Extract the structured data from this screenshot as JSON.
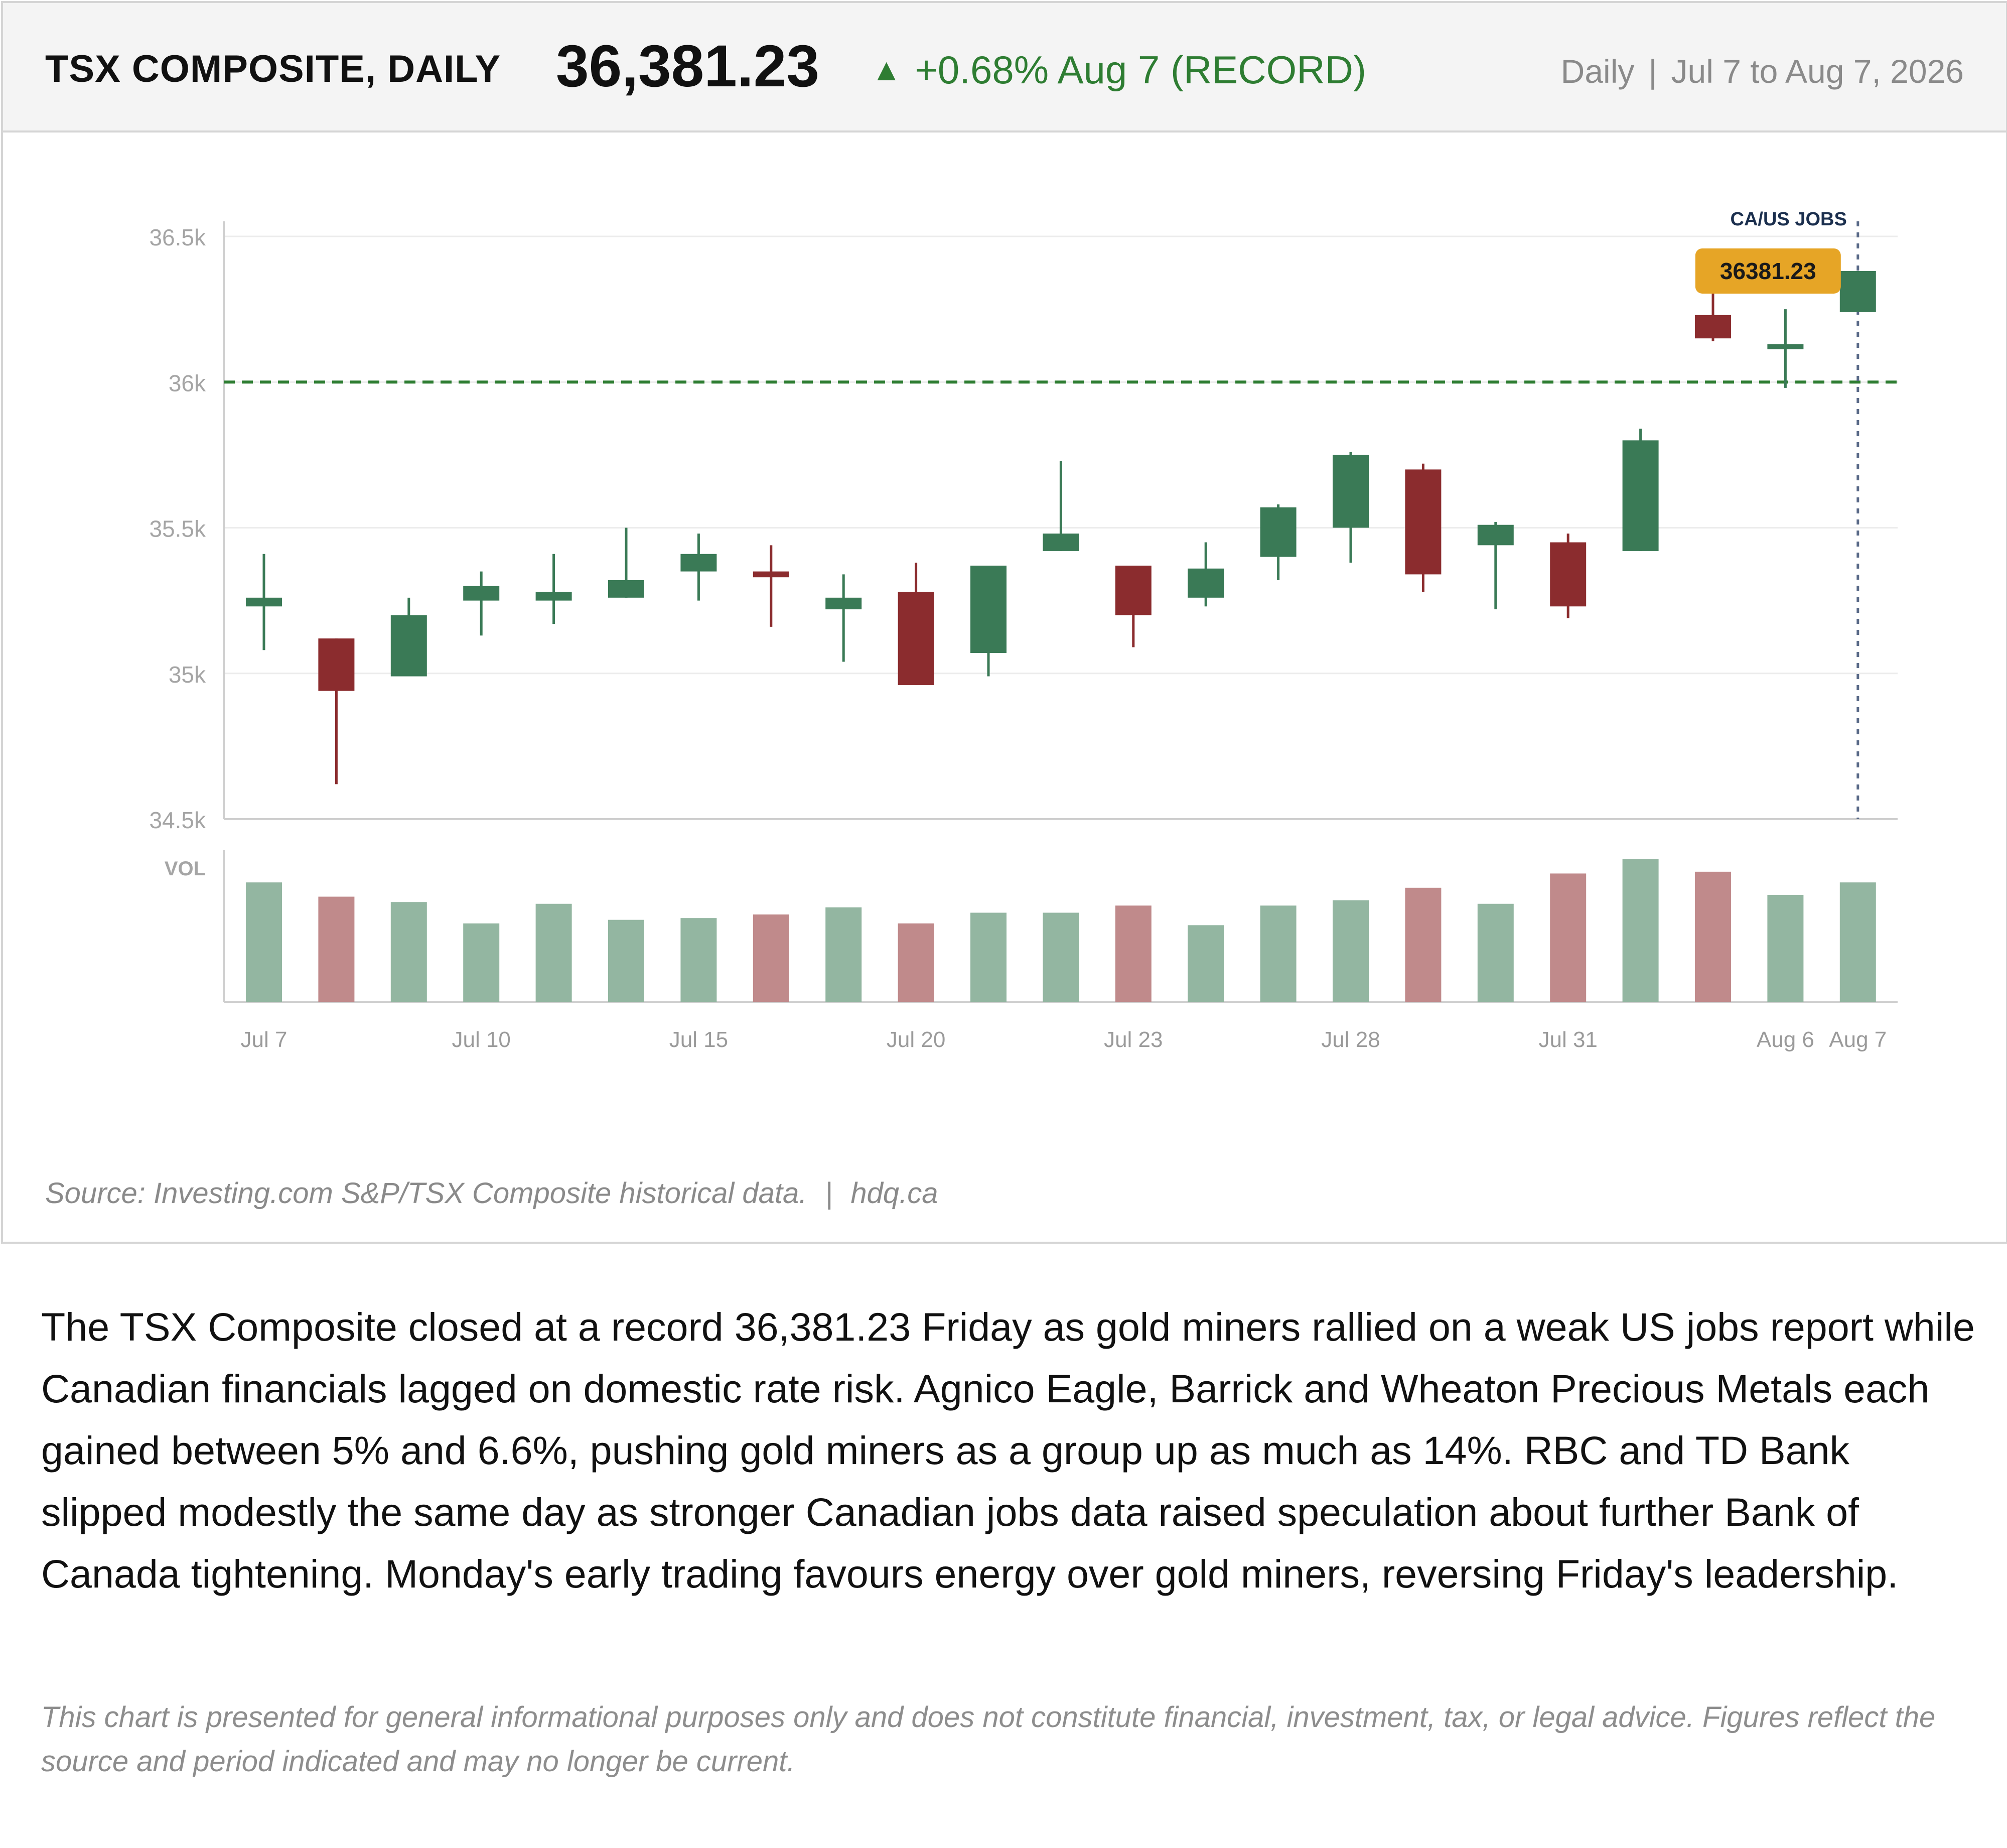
{
  "header": {
    "title": "TSX COMPOSITE, DAILY",
    "price": "36,381.23",
    "change_arrow": "▲",
    "change_text": "+0.68% Aug 7 (RECORD)",
    "interval": "Daily",
    "separator": "|",
    "date_range": "Jul 7 to Aug 7, 2026"
  },
  "colors": {
    "up": "#3a7a56",
    "down": "#8b2c2e",
    "up_volume": "#93b6a1",
    "down_volume": "#c08a8b",
    "threshold_line": "#2e7d32",
    "event_line": "#5a6a88",
    "event_label": "#1b2f4e",
    "callout_bg": "#e6a526",
    "change_text": "#2e7d32"
  },
  "chart_data": {
    "type": "candlestick",
    "y_ticks": [
      "36.5k",
      "36k",
      "35.5k",
      "35k",
      "34.5k"
    ],
    "y_tick_values": [
      36500,
      36000,
      35500,
      35000,
      34500
    ],
    "ylim": [
      34500,
      36550
    ],
    "volume_label": "VOL",
    "x_tick_labels": [
      "Jul 7",
      "Jul 10",
      "Jul 15",
      "Jul 20",
      "Jul 23",
      "Jul 28",
      "Jul 31",
      "Aug 6",
      "Aug 7"
    ],
    "x_tick_indices": [
      0,
      3,
      6,
      9,
      12,
      15,
      18,
      21,
      22
    ],
    "threshold": 36000,
    "event_marker": {
      "label": "CA/US JOBS",
      "index": 22
    },
    "callout": {
      "label": "36381.23",
      "value": 36381.23
    },
    "candles": [
      {
        "open": 35230,
        "high": 35410,
        "low": 35080,
        "close": 35260,
        "volume": 3.35
      },
      {
        "open": 35120,
        "high": 35120,
        "low": 34620,
        "close": 34940,
        "volume": 2.95
      },
      {
        "open": 34990,
        "high": 35260,
        "low": 34990,
        "close": 35200,
        "volume": 2.8
      },
      {
        "open": 35250,
        "high": 35350,
        "low": 35130,
        "close": 35300,
        "volume": 2.2
      },
      {
        "open": 35250,
        "high": 35410,
        "low": 35170,
        "close": 35280,
        "volume": 2.75
      },
      {
        "open": 35260,
        "high": 35500,
        "low": 35260,
        "close": 35320,
        "volume": 2.3
      },
      {
        "open": 35350,
        "high": 35480,
        "low": 35250,
        "close": 35410,
        "volume": 2.35
      },
      {
        "open": 35350,
        "high": 35440,
        "low": 35160,
        "close": 35330,
        "volume": 2.45
      },
      {
        "open": 35220,
        "high": 35340,
        "low": 35040,
        "close": 35260,
        "volume": 2.65
      },
      {
        "open": 35280,
        "high": 35380,
        "low": 34960,
        "close": 34960,
        "volume": 2.2
      },
      {
        "open": 35070,
        "high": 35370,
        "low": 34990,
        "close": 35370,
        "volume": 2.5
      },
      {
        "open": 35420,
        "high": 35730,
        "low": 35420,
        "close": 35480,
        "volume": 2.5
      },
      {
        "open": 35370,
        "high": 35370,
        "low": 35090,
        "close": 35200,
        "volume": 2.7
      },
      {
        "open": 35260,
        "high": 35450,
        "low": 35230,
        "close": 35360,
        "volume": 2.15
      },
      {
        "open": 35400,
        "high": 35580,
        "low": 35320,
        "close": 35570,
        "volume": 2.7
      },
      {
        "open": 35500,
        "high": 35760,
        "low": 35380,
        "close": 35750,
        "volume": 2.85
      },
      {
        "open": 35700,
        "high": 35720,
        "low": 35280,
        "close": 35340,
        "volume": 3.2
      },
      {
        "open": 35440,
        "high": 35520,
        "low": 35220,
        "close": 35510,
        "volume": 2.75
      },
      {
        "open": 35450,
        "high": 35480,
        "low": 35190,
        "close": 35230,
        "volume": 3.6
      },
      {
        "open": 35420,
        "high": 35840,
        "low": 35420,
        "close": 35800,
        "volume": 4.0
      },
      {
        "open": 36230,
        "high": 36330,
        "low": 36140,
        "close": 36150,
        "volume": 3.65
      },
      {
        "open": 36120,
        "high": 36250,
        "low": 35980,
        "close": 36130,
        "volume": 3.0
      },
      {
        "open": 36240,
        "high": 36381.23,
        "low": 36240,
        "close": 36381.23,
        "volume": 3.35
      }
    ]
  },
  "source": {
    "text": "Source: Investing.com S&P/TSX Composite historical data.",
    "separator": "|",
    "site": "hdq.ca"
  },
  "article": {
    "body": "The TSX Composite closed at a record 36,381.23 Friday as gold miners rallied on a weak US jobs report while Canadian financials lagged on domestic rate risk. Agnico Eagle, Barrick and Wheaton Precious Metals each gained between 5% and 6.6%, pushing gold miners as a group up as much as 14%. RBC and TD Bank slipped modestly the same day as stronger Canadian jobs data raised speculation about further Bank of Canada tightening. Monday's early trading favours energy over gold miners, reversing Friday's leadership.",
    "disclaimer": "This chart is presented for general informational purposes only and does not constitute financial, investment, tax, or legal advice. Figures reflect the source and period indicated and may no longer be current."
  }
}
